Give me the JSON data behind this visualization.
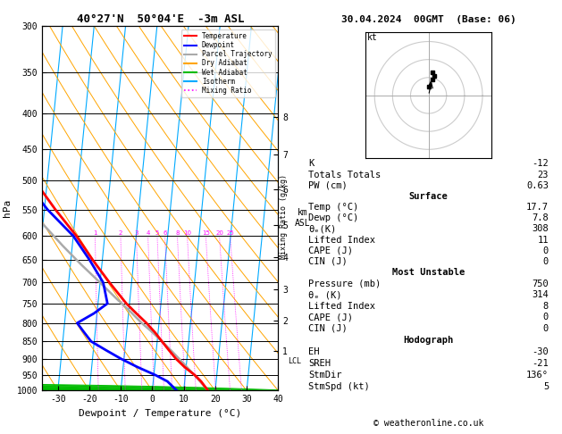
{
  "title_main": "40°27'N  50°04'E  -3m ASL",
  "title_right": "30.04.2024  00GMT  (Base: 06)",
  "xlabel": "Dewpoint / Temperature (°C)",
  "ylabel_left": "hPa",
  "temp_color": "#ff0000",
  "dewp_color": "#0000ff",
  "parcel_color": "#aaaaaa",
  "dry_adiabat_color": "#ffa500",
  "wet_adiabat_color": "#00bb00",
  "isotherm_color": "#00aaff",
  "mixing_ratio_color": "#ff00ff",
  "legend_items": [
    "Temperature",
    "Dewpoint",
    "Parcel Trajectory",
    "Dry Adiabat",
    "Wet Adiabat",
    "Isotherm",
    "Mixing Ratio"
  ],
  "legend_colors": [
    "#ff0000",
    "#0000ff",
    "#aaaaaa",
    "#ffa500",
    "#00bb00",
    "#00aaff",
    "#ff00ff"
  ],
  "legend_styles": [
    "-",
    "-",
    "-",
    "-",
    "-",
    "-",
    ":"
  ],
  "pressure_levels": [
    300,
    350,
    400,
    450,
    500,
    550,
    600,
    650,
    700,
    750,
    800,
    850,
    900,
    950,
    1000
  ],
  "temp_profile_p": [
    1000,
    970,
    950,
    925,
    900,
    875,
    850,
    825,
    800,
    775,
    750,
    700,
    650,
    600,
    550,
    500,
    450,
    400,
    350,
    300
  ],
  "temp_profile_t": [
    17.7,
    15.2,
    13.0,
    9.5,
    6.5,
    4.0,
    1.5,
    -1.0,
    -4.0,
    -7.5,
    -11.0,
    -17.0,
    -23.0,
    -29.0,
    -36.5,
    -44.0,
    -52.0,
    -57.0,
    -59.0,
    -54.0
  ],
  "dewp_profile_p": [
    1000,
    970,
    950,
    925,
    900,
    875,
    850,
    825,
    800,
    775,
    750,
    700,
    650,
    600,
    550,
    500,
    450,
    400,
    350,
    300
  ],
  "dewp_profile_t": [
    7.8,
    4.5,
    0.5,
    -5.5,
    -11.0,
    -16.0,
    -21.0,
    -23.5,
    -26.0,
    -21.0,
    -17.0,
    -19.0,
    -24.0,
    -30.0,
    -39.0,
    -47.0,
    -57.0,
    -63.0,
    -66.0,
    -66.0
  ],
  "parcel_profile_p": [
    1000,
    980,
    960,
    940,
    920,
    900,
    880,
    860,
    840,
    820,
    800,
    770,
    740,
    700,
    660,
    620,
    580,
    540,
    500,
    460,
    420,
    380,
    340,
    300
  ],
  "parcel_profile_t": [
    17.7,
    15.8,
    13.9,
    11.8,
    9.7,
    7.5,
    5.2,
    2.8,
    0.2,
    -2.5,
    -5.5,
    -9.5,
    -14.0,
    -20.0,
    -26.5,
    -33.0,
    -39.5,
    -46.0,
    -52.5,
    -58.0,
    -62.0,
    -64.0,
    -64.5,
    -62.0
  ],
  "xmin": -35,
  "xmax": 40,
  "skew_factor": 22,
  "mixing_ratios": [
    1,
    2,
    3,
    4,
    5,
    6,
    8,
    10,
    15,
    20,
    25
  ],
  "km_ticks": [
    1,
    2,
    3,
    4,
    5,
    6,
    7,
    8
  ],
  "km_pressures": [
    877,
    793,
    716,
    644,
    578,
    515,
    458,
    405
  ],
  "lcl_pressure": 908,
  "lcl_label": "LCL",
  "info_K": "-12",
  "info_TT": "23",
  "info_PW": "0.63",
  "sfc_temp": "17.7",
  "sfc_dewp": "7.8",
  "sfc_thetae": "308",
  "sfc_li": "11",
  "sfc_cape": "0",
  "sfc_cin": "0",
  "mu_pressure": "750",
  "mu_thetae": "314",
  "mu_li": "8",
  "mu_cape": "0",
  "mu_cin": "0",
  "hodo_EH": "-30",
  "hodo_SREH": "-21",
  "hodo_StmDir": "136°",
  "hodo_StmSpd": "5",
  "footer": "© weatheronline.co.uk"
}
